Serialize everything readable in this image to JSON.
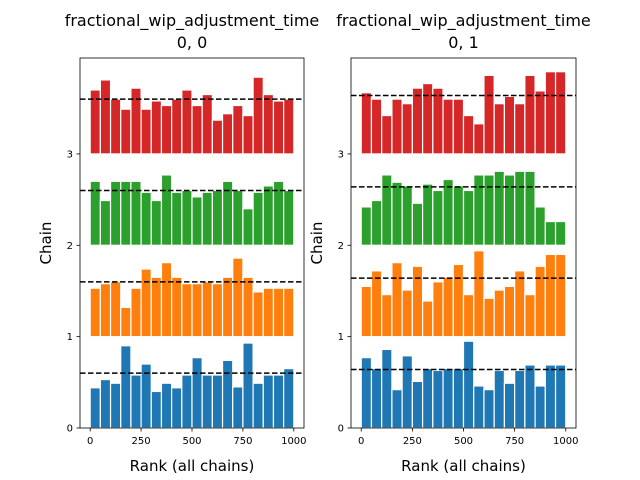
{
  "chart_data": [
    {
      "type": "bar",
      "title_line1": "fractional_wip_adjustment_time",
      "title_line2": "0, 0",
      "xlabel": "Rank (all chains)",
      "ylabel": "Chain",
      "xticks": [
        "0",
        "250",
        "500",
        "750",
        "1000"
      ],
      "yticks": [
        "0",
        "1",
        "2",
        "3"
      ],
      "xlim": [
        -50,
        1050
      ],
      "ylim": [
        0,
        4.05
      ],
      "bin_width": 50,
      "bin_starts": [
        0,
        50,
        100,
        150,
        200,
        250,
        300,
        350,
        400,
        450,
        500,
        550,
        600,
        650,
        700,
        750,
        800,
        850,
        900,
        950
      ],
      "reference_lines": [
        0.6,
        1.6,
        2.6,
        3.6
      ],
      "series": [
        {
          "chain": 0,
          "color": "#1f77b4",
          "values": [
            0.44,
            0.53,
            0.49,
            0.9,
            0.58,
            0.7,
            0.4,
            0.49,
            0.44,
            0.58,
            0.77,
            0.58,
            0.58,
            0.74,
            0.45,
            0.93,
            0.49,
            0.58,
            0.58,
            0.65
          ]
        },
        {
          "chain": 1,
          "color": "#ff7f0e",
          "values": [
            0.53,
            0.58,
            0.6,
            0.32,
            0.53,
            0.74,
            0.65,
            0.81,
            0.65,
            0.58,
            0.58,
            0.6,
            0.58,
            0.65,
            0.86,
            0.65,
            0.49,
            0.53,
            0.53,
            0.53
          ]
        },
        {
          "chain": 2,
          "color": "#2ca02c",
          "values": [
            0.7,
            0.49,
            0.7,
            0.7,
            0.7,
            0.58,
            0.49,
            0.77,
            0.58,
            0.6,
            0.53,
            0.58,
            0.6,
            0.7,
            0.6,
            0.4,
            0.58,
            0.65,
            0.7,
            0.6
          ]
        },
        {
          "chain": 3,
          "color": "#d62728",
          "values": [
            0.7,
            0.81,
            0.6,
            0.49,
            0.72,
            0.49,
            0.58,
            0.53,
            0.6,
            0.7,
            0.53,
            0.65,
            0.37,
            0.44,
            0.53,
            0.42,
            0.84,
            0.65,
            0.58,
            0.6
          ]
        }
      ]
    },
    {
      "type": "bar",
      "title_line1": "fractional_wip_adjustment_time",
      "title_line2": "0, 1",
      "xlabel": "Rank (all chains)",
      "ylabel": "Chain",
      "xticks": [
        "0",
        "250",
        "500",
        "750",
        "1000"
      ],
      "yticks": [
        "0",
        "1",
        "2",
        "3"
      ],
      "xlim": [
        -50,
        1050
      ],
      "ylim": [
        0,
        4.05
      ],
      "bin_width": 50,
      "bin_starts": [
        0,
        50,
        100,
        150,
        200,
        250,
        300,
        350,
        400,
        450,
        500,
        550,
        600,
        650,
        700,
        750,
        800,
        850,
        900,
        950
      ],
      "reference_lines": [
        0.64,
        1.64,
        2.64,
        3.64
      ],
      "series": [
        {
          "chain": 0,
          "color": "#1f77b4",
          "values": [
            0.77,
            0.65,
            0.86,
            0.42,
            0.79,
            0.51,
            0.65,
            0.63,
            0.65,
            0.65,
            0.95,
            0.46,
            0.42,
            0.63,
            0.49,
            0.63,
            0.69,
            0.46,
            0.69,
            0.69
          ]
        },
        {
          "chain": 1,
          "color": "#ff7f0e",
          "values": [
            0.55,
            0.72,
            0.46,
            0.81,
            0.51,
            0.77,
            0.39,
            0.6,
            0.65,
            0.79,
            0.46,
            0.94,
            0.42,
            0.51,
            0.55,
            0.72,
            0.46,
            0.77,
            0.9,
            0.9
          ]
        },
        {
          "chain": 2,
          "color": "#2ca02c",
          "values": [
            0.42,
            0.49,
            0.77,
            0.69,
            0.65,
            0.46,
            0.67,
            0.6,
            0.72,
            0.65,
            0.6,
            0.77,
            0.77,
            0.81,
            0.77,
            0.81,
            0.81,
            0.42,
            0.26,
            0.26
          ]
        },
        {
          "chain": 3,
          "color": "#d62728",
          "values": [
            0.67,
            0.6,
            0.42,
            0.6,
            0.55,
            0.72,
            0.77,
            0.72,
            0.6,
            0.6,
            0.42,
            0.33,
            0.86,
            0.55,
            0.63,
            0.55,
            0.86,
            0.69,
            0.9,
            0.9
          ]
        }
      ]
    }
  ]
}
